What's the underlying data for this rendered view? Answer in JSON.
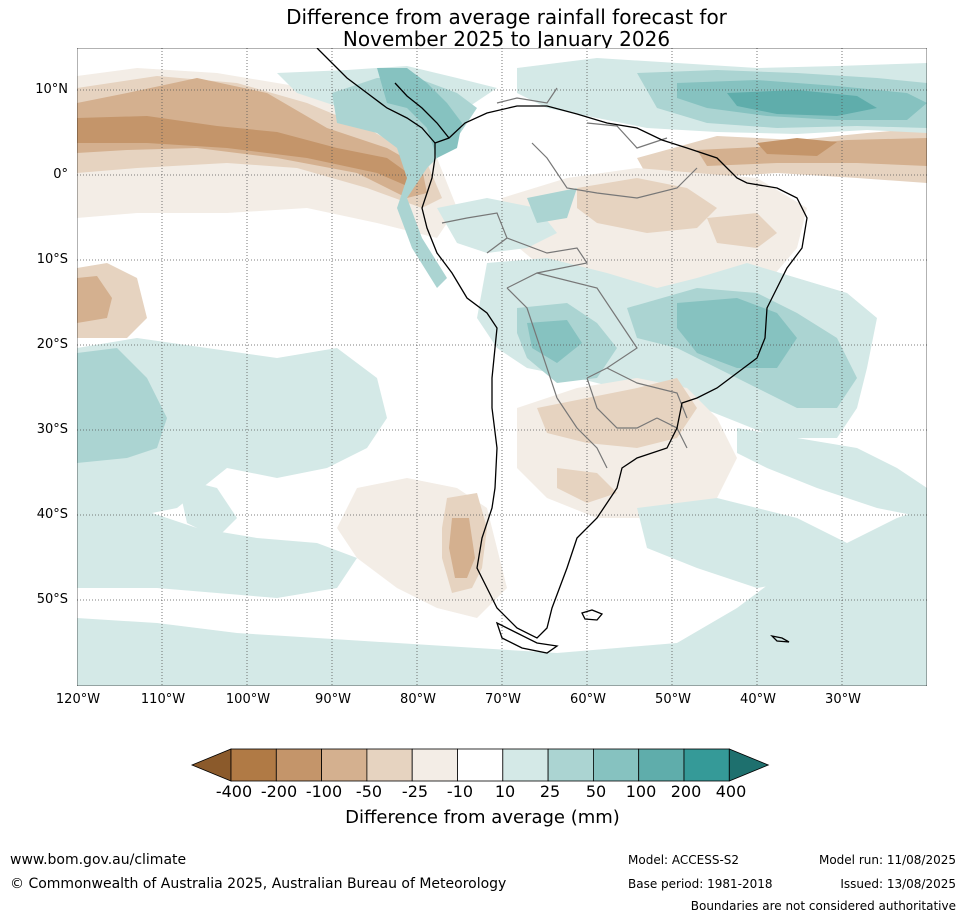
{
  "title_line1": "Difference from average rainfall forecast for",
  "title_line2": "November 2025 to January 2026",
  "map": {
    "lat_labels": [
      "10°N",
      "0°",
      "10°S",
      "20°S",
      "30°S",
      "40°S",
      "50°S"
    ],
    "lon_labels": [
      "120°W",
      "110°W",
      "100°W",
      "90°W",
      "80°W",
      "70°W",
      "60°W",
      "50°W",
      "40°W",
      "30°W"
    ]
  },
  "legend": {
    "ticks": [
      "-400",
      "-200",
      "-100",
      "-50",
      "-25",
      "-10",
      "10",
      "25",
      "50",
      "100",
      "200",
      "400"
    ],
    "colors": [
      "#8b5a2b",
      "#b07a45",
      "#c4956a",
      "#d4b08f",
      "#e6d3c0",
      "#f3ede6",
      "#ffffff",
      "#d4e9e7",
      "#abd4d2",
      "#86c2c0",
      "#5fadab",
      "#359a98",
      "#1e706e"
    ],
    "label": "Difference from average (mm)"
  },
  "footer": {
    "website": "www.bom.gov.au/climate",
    "copyright": "© Commonwealth of Australia 2025, Australian Bureau of Meteorology",
    "model": "Model: ACCESS-S2",
    "base_period": "Base period: 1981-2018",
    "model_run": "Model run: 11/08/2025",
    "issued": "Issued: 13/08/2025",
    "disclaimer": "Boundaries are not considered authoritative"
  }
}
